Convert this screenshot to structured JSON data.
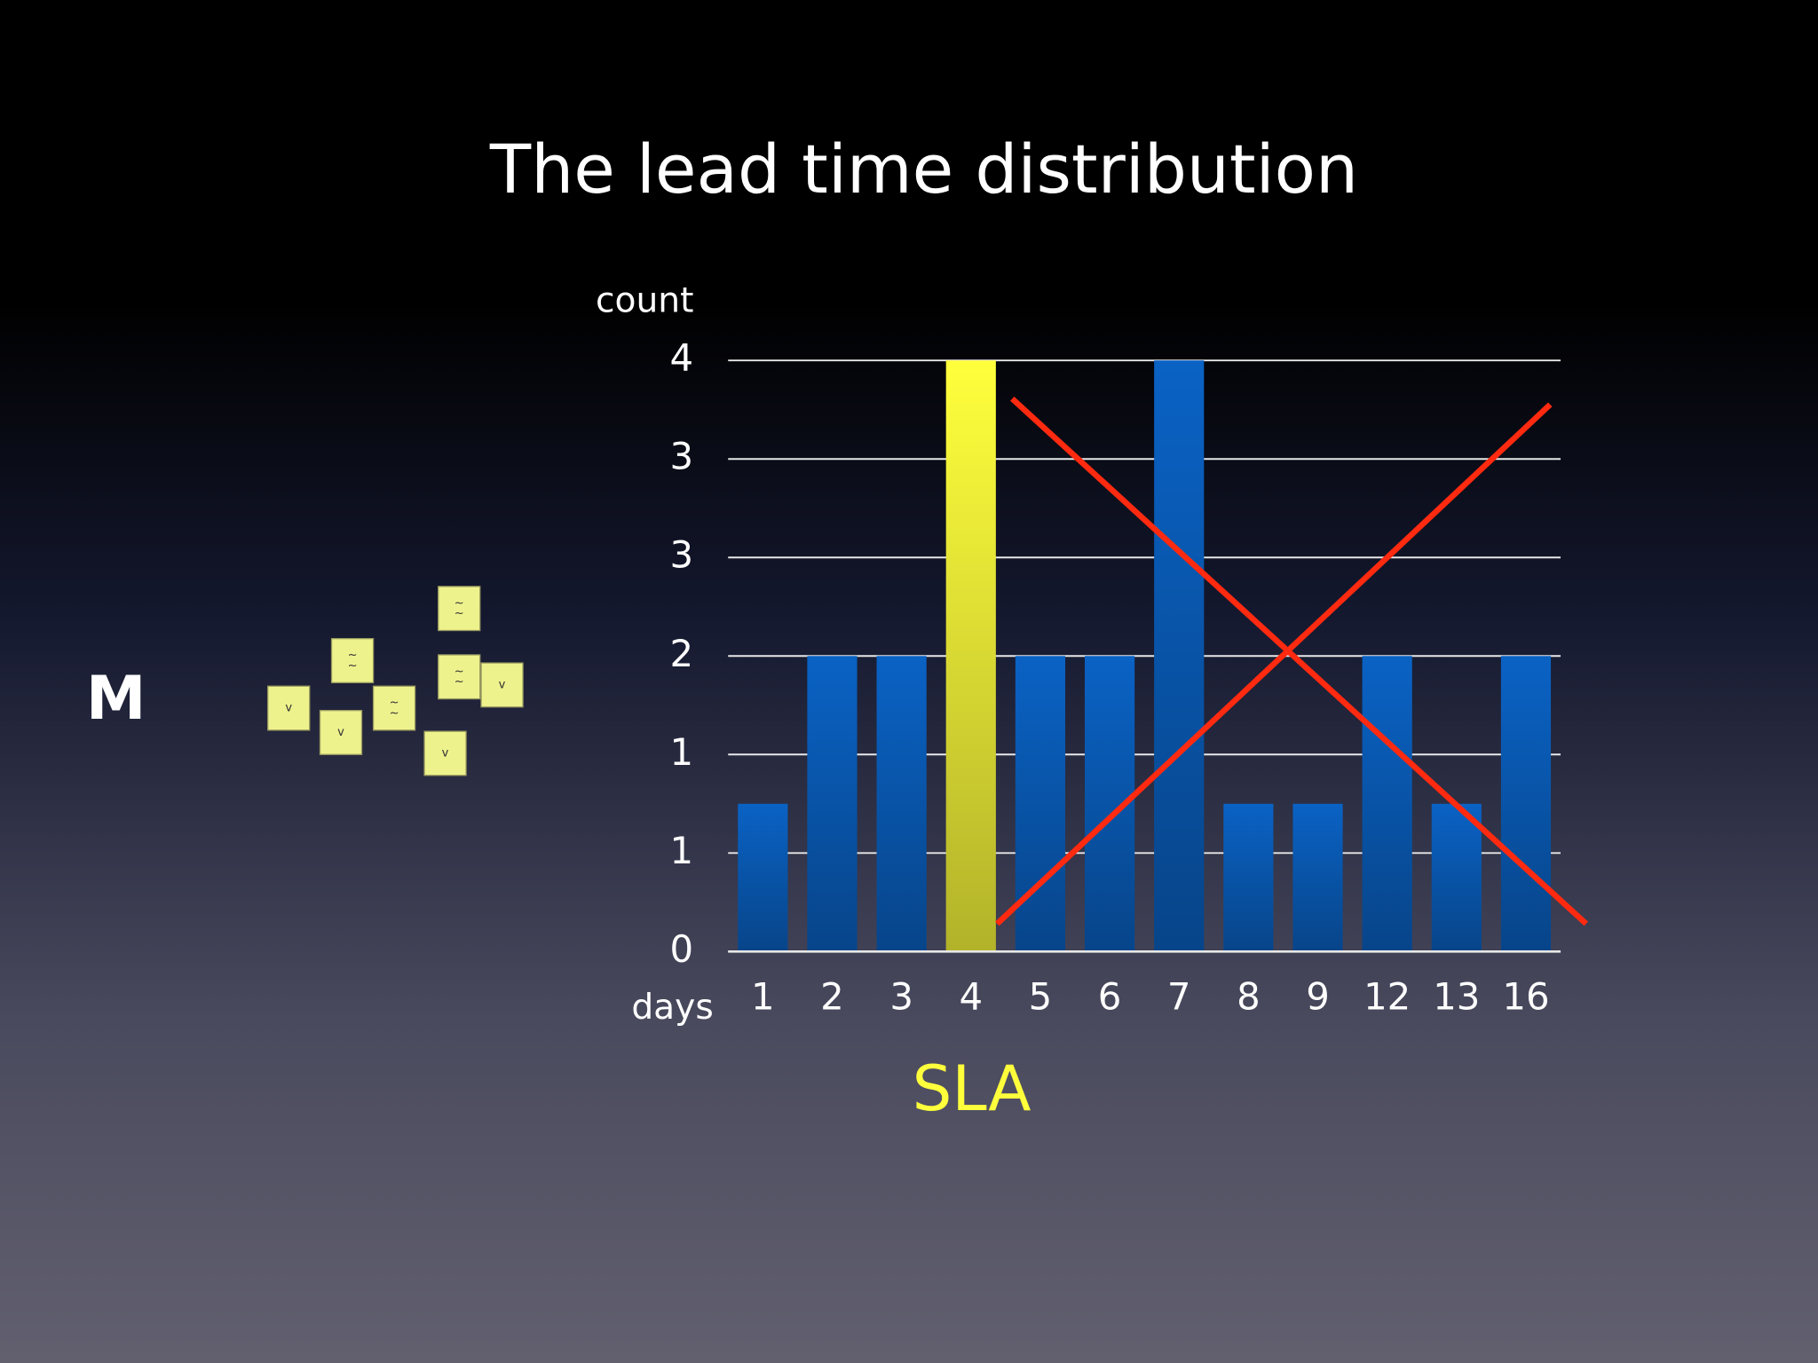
{
  "chart_data": {
    "type": "bar",
    "title": "The lead time distribution",
    "y_label": "count",
    "x_label": "days",
    "categories": [
      "1",
      "2",
      "3",
      "4",
      "5",
      "6",
      "7",
      "8",
      "9",
      "12",
      "13",
      "16"
    ],
    "values": [
      1,
      2,
      2,
      4,
      2,
      2,
      4,
      1,
      1,
      2,
      1,
      2
    ],
    "colors": [
      "#0a62c4",
      "#0a62c4",
      "#0a62c4",
      "#ffff3c",
      "#0a62c4",
      "#0a62c4",
      "#0a62c4",
      "#0a62c4",
      "#0a62c4",
      "#0a62c4",
      "#0a62c4",
      "#0a62c4"
    ],
    "ylim": [
      0,
      4
    ],
    "yticks": [
      0,
      {
        "value": 0.6667,
        "label": "1"
      },
      {
        "value": 1.3333,
        "label": "1"
      },
      2,
      {
        "value": 2.6667,
        "label": "3"
      },
      {
        "value": 3.3333,
        "label": "3"
      },
      4
    ],
    "grid": true,
    "annotation": "SLA",
    "side_label": "M",
    "sticky_notes": [
      {
        "lines": [
          "v"
        ]
      },
      {
        "lines": [
          "v"
        ]
      },
      {
        "lines": [
          "~",
          "~"
        ]
      },
      {
        "lines": [
          "~",
          "~"
        ]
      },
      {
        "lines": [
          "~",
          "~"
        ]
      },
      {
        "lines": [
          "~",
          "~"
        ]
      },
      {
        "lines": [
          "v"
        ]
      },
      {
        "lines": [
          "v"
        ]
      }
    ]
  }
}
